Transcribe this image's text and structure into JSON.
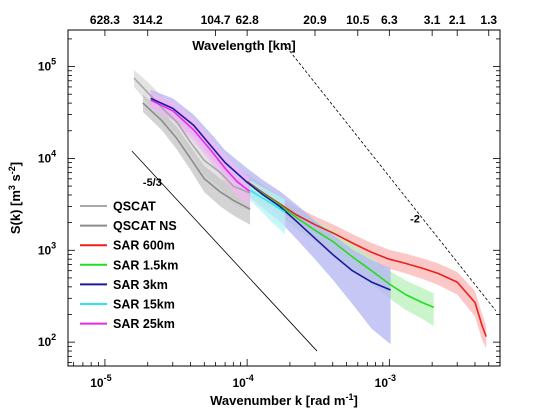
{
  "chart_data": {
    "type": "line",
    "xlabel": "Wavenumber k [rad m⁻¹]",
    "ylabel": "S(k) [m³ s⁻²]",
    "top_xlabel": "Wavelength [km]",
    "x_scale": "log",
    "y_scale": "log",
    "xlim": [
      5.5e-06,
      0.006
    ],
    "ylim": [
      55,
      250000
    ],
    "grid": false,
    "legend_position": "bottom-left",
    "x_ticks": [
      {
        "value": 1e-05,
        "base": "10",
        "exp": "-5"
      },
      {
        "value": 0.0001,
        "base": "10",
        "exp": "-4"
      },
      {
        "value": 0.001,
        "base": "10",
        "exp": "-3"
      }
    ],
    "y_ticks": [
      {
        "value": 100,
        "base": "10",
        "exp": "2"
      },
      {
        "value": 1000,
        "base": "10",
        "exp": "3"
      },
      {
        "value": 10000,
        "base": "10",
        "exp": "4"
      },
      {
        "value": 100000,
        "base": "10",
        "exp": "5"
      }
    ],
    "top_ticks": [
      {
        "label": "628.3",
        "k": 1e-05
      },
      {
        "label": "314.2",
        "k": 2e-05
      },
      {
        "label": "104.7",
        "k": 6e-05
      },
      {
        "label": "62.8",
        "k": 0.0001
      },
      {
        "label": "20.9",
        "k": 0.0003
      },
      {
        "label": "10.5",
        "k": 0.0006
      },
      {
        "label": "6.3",
        "k": 0.001
      },
      {
        "label": "3.1",
        "k": 0.002
      },
      {
        "label": "2.1",
        "k": 0.003
      },
      {
        "label": "1.3",
        "k": 0.005
      }
    ],
    "reference_lines": [
      {
        "label": "-5/3",
        "points": [
          [
            1.55e-05,
            12000
          ],
          [
            0.00031,
            80
          ]
        ],
        "style": "solid",
        "label_at": [
          1.85e-05,
          5000
        ]
      },
      {
        "label": "-2",
        "points": [
          [
            0.00018,
            180000
          ],
          [
            0.0056,
            220
          ]
        ],
        "style": "dashed",
        "label_at": [
          0.0014,
          2000
        ]
      }
    ],
    "series": [
      {
        "name": "QSCAT",
        "color": "#a8a8a8",
        "band_color": "#d9d9d9",
        "x": [
          1.6e-05,
          2e-05,
          2.5e-05,
          3.2e-05,
          4e-05,
          5e-05,
          6.5e-05,
          8e-05,
          0.000105
        ],
        "y": [
          75000,
          52000,
          36000,
          25000,
          15000,
          9500,
          7000,
          5000,
          4200
        ],
        "band_lo": [
          60000,
          40000,
          27000,
          18500,
          11000,
          6500,
          4800,
          3200,
          2700
        ],
        "band_hi": [
          92000,
          68000,
          48000,
          34000,
          21000,
          14000,
          10500,
          7800,
          6600
        ]
      },
      {
        "name": "QSCAT NS",
        "color": "#8c8c8c",
        "band_color": "#c4c4c4",
        "x": [
          1.85e-05,
          2.5e-05,
          3.2e-05,
          4e-05,
          5e-05,
          6.5e-05,
          8e-05,
          0.000105
        ],
        "y": [
          40000,
          26000,
          16500,
          10000,
          6000,
          4300,
          3500,
          2800
        ],
        "band_lo": [
          32000,
          20500,
          12500,
          7500,
          4300,
          3000,
          2400,
          1900
        ],
        "band_hi": [
          50000,
          33000,
          22000,
          13500,
          8300,
          6000,
          5000,
          4100
        ]
      },
      {
        "name": "SAR 600m",
        "color": "#e8221c",
        "band_color": "#f9b4b4",
        "x": [
          0.0001,
          0.00013,
          0.00017,
          0.00022,
          0.0003,
          0.0004,
          0.00055,
          0.00075,
          0.001,
          0.0013,
          0.0017,
          0.0022,
          0.003,
          0.004,
          0.0045,
          0.0048
        ],
        "y": [
          5600,
          4200,
          3200,
          2450,
          1900,
          1550,
          1200,
          950,
          800,
          720,
          640,
          560,
          450,
          270,
          150,
          115
        ],
        "band_lo": [
          4600,
          3500,
          2650,
          2000,
          1550,
          1250,
          960,
          760,
          630,
          560,
          490,
          420,
          330,
          190,
          105,
          85
        ],
        "band_hi": [
          6800,
          5100,
          3900,
          3000,
          2350,
          1920,
          1500,
          1200,
          1010,
          920,
          820,
          720,
          580,
          360,
          200,
          150
        ]
      },
      {
        "name": "SAR 1.5km",
        "color": "#22dd22",
        "band_color": "#b8f0b8",
        "x": [
          0.0001,
          0.00013,
          0.00017,
          0.00022,
          0.0003,
          0.0004,
          0.00055,
          0.00075,
          0.001,
          0.0013,
          0.0017,
          0.00205
        ],
        "y": [
          5500,
          4100,
          3100,
          2300,
          1650,
          1250,
          850,
          600,
          430,
          330,
          270,
          240
        ],
        "band_lo": [
          4400,
          3200,
          2400,
          1750,
          1250,
          930,
          620,
          430,
          300,
          225,
          180,
          150
        ],
        "band_hi": [
          6800,
          5100,
          3900,
          2950,
          2150,
          1650,
          1150,
          830,
          600,
          470,
          390,
          340
        ]
      },
      {
        "name": "SAR 3km",
        "color": "#1a1aa0",
        "band_color": "#b4b4f2",
        "x": [
          2.1e-05,
          3e-05,
          4.2e-05,
          5.5e-05,
          7e-05,
          0.0001,
          0.00013,
          0.00017,
          0.00022,
          0.0003,
          0.0004,
          0.00055,
          0.00075,
          0.00102
        ],
        "y": [
          45000,
          35000,
          23000,
          14000,
          9000,
          5500,
          4000,
          3000,
          2100,
          1350,
          900,
          600,
          450,
          370
        ],
        "band_lo": [
          36000,
          27000,
          17500,
          10500,
          6700,
          4000,
          2850,
          2050,
          1350,
          800,
          480,
          260,
          140,
          95
        ],
        "band_hi": [
          56000,
          45000,
          30000,
          19000,
          12300,
          7800,
          5800,
          4400,
          3200,
          2100,
          1480,
          1020,
          780,
          640
        ]
      },
      {
        "name": "SAR 15km",
        "color": "#2ee8e8",
        "band_color": "#b4f4f4",
        "x": [
          0.000105,
          0.000125,
          0.00015,
          0.000185
        ],
        "y": [
          4500,
          3800,
          3200,
          2600
        ],
        "band_lo": [
          3500,
          2700,
          2000,
          1500
        ],
        "band_hi": [
          5800,
          5000,
          4300,
          3600
        ]
      },
      {
        "name": "SAR 25km",
        "color": "#e82ae8",
        "band_color": "#f2b8f2",
        "x": [
          2.1e-05,
          3e-05,
          4.2e-05,
          5.5e-05,
          7e-05,
          8.5e-05,
          0.000104
        ],
        "y": [
          43000,
          33000,
          20500,
          12500,
          7800,
          5600,
          4400
        ],
        "band_lo": [
          35000,
          26000,
          15500,
          9200,
          5600,
          3900,
          3000
        ],
        "band_hi": [
          53000,
          42000,
          27000,
          17000,
          10800,
          7900,
          6200
        ]
      }
    ]
  }
}
